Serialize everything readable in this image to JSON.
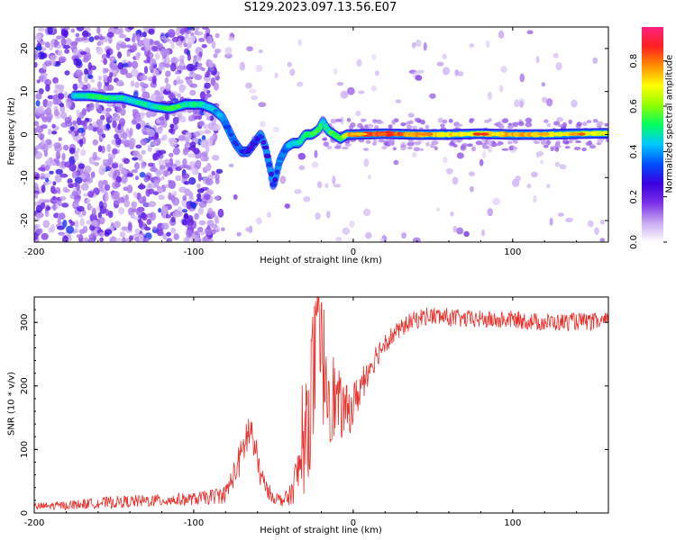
{
  "title": "S129.2023.097.13.56.E07",
  "colors": {
    "axis": "#000000",
    "snr_line": "#e8322d",
    "background": "#ffffff"
  },
  "colorbar": {
    "label": "Normalized spectral amplitude",
    "ticks": [
      "0.0",
      "0.2",
      "0.4",
      "0.6",
      "0.8"
    ],
    "tick_values": [
      0.0,
      0.2,
      0.4,
      0.6,
      0.8
    ],
    "range": [
      0,
      0.95
    ],
    "colormap": [
      "#ffffff",
      "#c8a8f0",
      "#7a30e8",
      "#3a00e0",
      "#0050ff",
      "#00c8ff",
      "#00ff60",
      "#90ff00",
      "#ffff00",
      "#ff9000",
      "#ff2020",
      "#ff2080"
    ]
  },
  "chart_data": [
    {
      "type": "heatmap",
      "title": "S129.2023.097.13.56.E07",
      "xlabel": "Height of straight line (km)",
      "ylabel": "Frequency (Hz)",
      "xlim": [
        -200,
        160
      ],
      "ylim": [
        -25,
        25
      ],
      "xticks": [
        -200,
        -100,
        0,
        100
      ],
      "xtick_labels": [
        "-200",
        "-100",
        "0",
        "100"
      ],
      "yticks": [
        -20,
        -10,
        0,
        10,
        20
      ],
      "ytick_labels": [
        "-20",
        "-10",
        "0",
        "10",
        "20"
      ],
      "ridge": {
        "description": "dominant frequency track",
        "x": [
          -175,
          -165,
          -155,
          -145,
          -135,
          -125,
          -115,
          -105,
          -95,
          -88,
          -82,
          -78,
          -74,
          -70,
          -66,
          -62,
          -58,
          -55,
          -52,
          -50,
          -46,
          -42,
          -38,
          -34,
          -30,
          -26,
          -22,
          -19,
          -16,
          -12,
          -8,
          -4,
          0,
          20,
          40,
          60,
          80,
          100,
          120,
          140,
          160
        ],
        "y": [
          9,
          9,
          8.5,
          8.5,
          7.5,
          6.5,
          6,
          7,
          7,
          6,
          4,
          1,
          -2,
          -4,
          -4,
          -2,
          0,
          -3,
          -8,
          -12,
          -6,
          -3,
          -2,
          -2,
          0,
          0,
          1,
          3,
          1,
          0,
          -1,
          0,
          0,
          0.2,
          0,
          0,
          0.2,
          0,
          0,
          0.2,
          0.3
        ],
        "amplitude": [
          0.45,
          0.55,
          0.55,
          0.5,
          0.5,
          0.5,
          0.55,
          0.55,
          0.5,
          0.45,
          0.4,
          0.35,
          0.35,
          0.35,
          0.3,
          0.3,
          0.3,
          0.3,
          0.3,
          0.3,
          0.35,
          0.4,
          0.45,
          0.5,
          0.55,
          0.55,
          0.55,
          0.5,
          0.5,
          0.6,
          0.6,
          0.7,
          0.85,
          0.9,
          0.8,
          0.75,
          0.7,
          0.8,
          0.75,
          0.7,
          0.7
        ]
      }
    },
    {
      "type": "line",
      "xlabel": "Height of straight line (km)",
      "ylabel": "SNR (10 * v/v)",
      "xlim": [
        -200,
        160
      ],
      "ylim": [
        0,
        340
      ],
      "xticks": [
        -200,
        -100,
        0,
        100
      ],
      "xtick_labels": [
        "-200",
        "-100",
        "0",
        "100"
      ],
      "yticks": [
        0,
        100,
        200,
        300
      ],
      "ytick_labels": [
        "0",
        "100",
        "200",
        "300"
      ],
      "series": [
        {
          "values_envelope": {
            "x": [
              -200,
              -180,
              -160,
              -140,
              -120,
              -100,
              -90,
              -80,
              -75,
              -70,
              -67,
              -64,
              -61,
              -58,
              -55,
              -50,
              -45,
              -40,
              -35,
              -30,
              -27,
              -24,
              -21,
              -18,
              -15,
              -12,
              -9,
              -6,
              -3,
              0,
              5,
              10,
              15,
              20,
              25,
              30,
              35,
              40,
              45,
              50,
              60,
              70,
              80,
              90,
              100,
              110,
              120,
              130,
              140,
              150,
              160
            ],
            "y": [
              10,
              12,
              16,
              18,
              20,
              22,
              25,
              30,
              60,
              90,
              120,
              130,
              90,
              60,
              40,
              25,
              20,
              25,
              60,
              110,
              180,
              230,
              250,
              230,
              200,
              180,
              170,
              160,
              160,
              170,
              200,
              230,
              250,
              270,
              280,
              290,
              300,
              305,
              310,
              310,
              308,
              305,
              305,
              303,
              305,
              302,
              300,
              300,
              302,
              300,
              302
            ],
            "spread": [
              6,
              7,
              9,
              10,
              10,
              10,
              12,
              15,
              20,
              30,
              35,
              35,
              30,
              20,
              15,
              10,
              10,
              15,
              40,
              80,
              110,
              120,
              110,
              100,
              90,
              70,
              55,
              45,
              40,
              35,
              30,
              25,
              20,
              18,
              15,
              14,
              14,
              15,
              15,
              15,
              15,
              14,
              14,
              14,
              14,
              14,
              14,
              14,
              14,
              14,
              14
            ]
          }
        }
      ]
    }
  ]
}
